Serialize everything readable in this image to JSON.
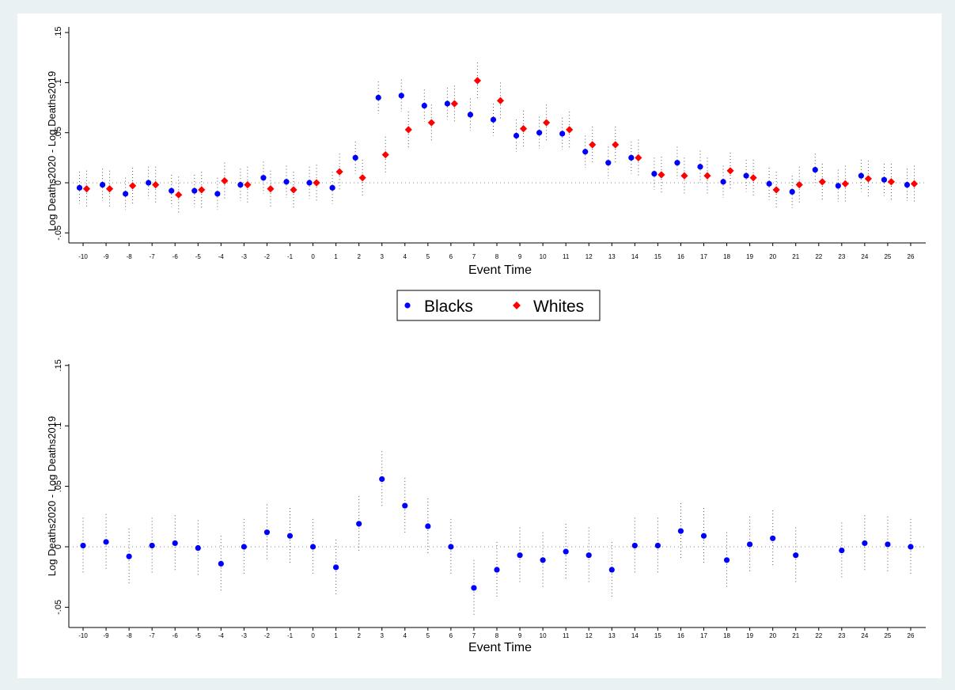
{
  "chart_data": [
    {
      "type": "scatter",
      "xlabel": "Event Time",
      "ylabel": "Log Deaths2020 - Log Deaths2019",
      "ylim": [
        -0.06,
        0.15
      ],
      "yticks": [
        ".15",
        ".1",
        ".05",
        "0",
        "-.05"
      ],
      "x": [
        -10,
        -9,
        -8,
        -7,
        -6,
        -5,
        -4,
        -3,
        -2,
        -1,
        0,
        1,
        2,
        3,
        4,
        5,
        6,
        7,
        8,
        9,
        10,
        11,
        12,
        13,
        14,
        15,
        16,
        17,
        18,
        19,
        20,
        21,
        22,
        23,
        24,
        25,
        26
      ],
      "series": [
        {
          "name": "Blacks",
          "color": "#0000ff",
          "marker": "circle",
          "values": [
            -0.005,
            -0.002,
            -0.011,
            0.0,
            -0.008,
            -0.008,
            -0.011,
            -0.002,
            0.005,
            0.001,
            0.0,
            -0.005,
            0.025,
            0.085,
            0.087,
            0.077,
            0.079,
            0.068,
            0.063,
            0.047,
            0.05,
            0.049,
            0.031,
            0.02,
            0.025,
            0.009,
            0.02,
            0.016,
            0.001,
            0.007,
            -0.001,
            -0.009,
            0.013,
            -0.003,
            0.007,
            0.003,
            -0.002
          ],
          "ci_half": 0.016
        },
        {
          "name": "Whites",
          "color": "#ff0000",
          "marker": "diamond",
          "values": [
            -0.006,
            -0.006,
            -0.003,
            -0.002,
            -0.012,
            -0.007,
            0.002,
            -0.002,
            -0.006,
            -0.007,
            0.0,
            0.011,
            0.005,
            0.028,
            0.053,
            0.06,
            0.079,
            0.102,
            0.082,
            0.054,
            0.06,
            0.053,
            0.038,
            0.038,
            0.025,
            0.008,
            0.007,
            0.007,
            0.012,
            0.005,
            -0.007,
            -0.002,
            0.001,
            -0.001,
            0.004,
            0.001,
            -0.001
          ],
          "ci_half": 0.018
        }
      ],
      "legend": {
        "position": "bottom-center",
        "items": [
          "Blacks",
          "Whites"
        ]
      }
    },
    {
      "type": "scatter",
      "xlabel": "Event Time",
      "ylabel": "Log Deaths2020 - Log Deaths2019",
      "ylim": [
        -0.06,
        0.15
      ],
      "yticks": [
        ".15",
        ".1",
        ".05",
        "0",
        "-.05"
      ],
      "x": [
        -10,
        -9,
        -8,
        -7,
        -6,
        -5,
        -4,
        -3,
        -2,
        -1,
        0,
        1,
        2,
        3,
        4,
        5,
        6,
        7,
        8,
        9,
        10,
        11,
        12,
        13,
        14,
        15,
        16,
        17,
        18,
        19,
        20,
        21,
        23,
        24,
        25,
        26
      ],
      "series": [
        {
          "name": "",
          "color": "#0000ff",
          "marker": "circle",
          "values": [
            0.001,
            0.004,
            -0.008,
            0.001,
            0.003,
            -0.001,
            -0.014,
            0.0,
            0.012,
            0.009,
            0.0,
            -0.017,
            0.019,
            0.056,
            0.034,
            0.017,
            0.0,
            -0.034,
            -0.019,
            -0.007,
            -0.011,
            -0.004,
            -0.007,
            -0.019,
            0.001,
            0.001,
            0.013,
            0.009,
            -0.011,
            0.002,
            0.007,
            -0.007,
            -0.003,
            0.003,
            0.002,
            0.0
          ],
          "ci_half": 0.023
        }
      ]
    }
  ]
}
